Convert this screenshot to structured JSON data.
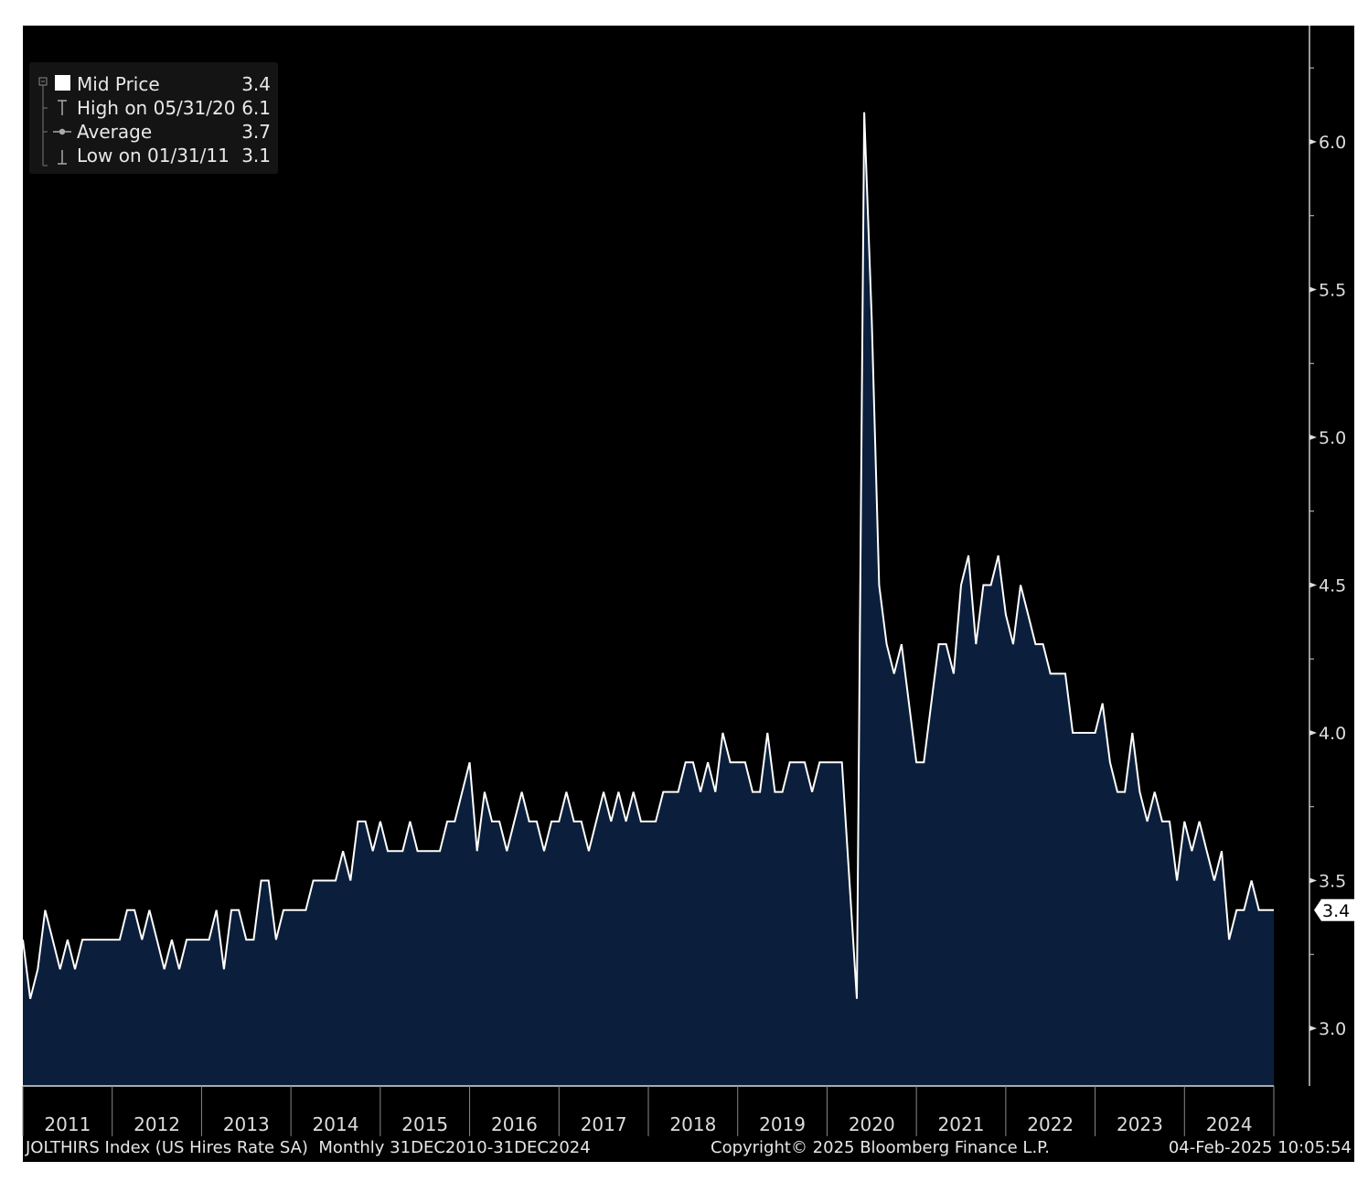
{
  "chart_data": {
    "type": "area",
    "title": "",
    "xlabel": "",
    "ylabel": "",
    "frequency": "Monthly",
    "x_start": "2010-12",
    "x_end": "2024-12",
    "ylim": [
      2.8,
      6.4
    ],
    "y_ticks": [
      "3.0",
      "3.5",
      "4.0",
      "4.5",
      "5.0",
      "5.5",
      "6.0"
    ],
    "x_tick_labels": [
      "2011",
      "2012",
      "2013",
      "2014",
      "2015",
      "2016",
      "2017",
      "2018",
      "2019",
      "2020",
      "2021",
      "2022",
      "2023",
      "2024"
    ],
    "y_axis_side": "right",
    "grid": false,
    "last_value_label": "3.4",
    "colors": {
      "background": "#000000",
      "fill": "#0b1f3c",
      "line": "#ffffff"
    },
    "series": [
      {
        "name": "Mid Price",
        "values": [
          3.3,
          3.1,
          3.2,
          3.4,
          3.3,
          3.2,
          3.3,
          3.2,
          3.3,
          3.3,
          3.3,
          3.3,
          3.3,
          3.3,
          3.4,
          3.4,
          3.3,
          3.4,
          3.3,
          3.2,
          3.3,
          3.2,
          3.3,
          3.3,
          3.3,
          3.3,
          3.4,
          3.2,
          3.4,
          3.4,
          3.3,
          3.3,
          3.5,
          3.5,
          3.3,
          3.4,
          3.4,
          3.4,
          3.4,
          3.5,
          3.5,
          3.5,
          3.5,
          3.6,
          3.5,
          3.7,
          3.7,
          3.6,
          3.7,
          3.6,
          3.6,
          3.6,
          3.7,
          3.6,
          3.6,
          3.6,
          3.6,
          3.7,
          3.7,
          3.8,
          3.9,
          3.6,
          3.8,
          3.7,
          3.7,
          3.6,
          3.7,
          3.8,
          3.7,
          3.7,
          3.6,
          3.7,
          3.7,
          3.8,
          3.7,
          3.7,
          3.6,
          3.7,
          3.8,
          3.7,
          3.8,
          3.7,
          3.8,
          3.7,
          3.7,
          3.7,
          3.8,
          3.8,
          3.8,
          3.9,
          3.9,
          3.8,
          3.9,
          3.8,
          4.0,
          3.9,
          3.9,
          3.9,
          3.8,
          3.8,
          4.0,
          3.8,
          3.8,
          3.9,
          3.9,
          3.9,
          3.8,
          3.9,
          3.9,
          3.9,
          3.9,
          3.5,
          3.1,
          6.1,
          5.4,
          4.5,
          4.3,
          4.2,
          4.3,
          4.1,
          3.9,
          3.9,
          4.1,
          4.3,
          4.3,
          4.2,
          4.5,
          4.6,
          4.3,
          4.5,
          4.5,
          4.6,
          4.4,
          4.3,
          4.5,
          4.4,
          4.3,
          4.3,
          4.2,
          4.2,
          4.2,
          4.0,
          4.0,
          4.0,
          4.0,
          4.1,
          3.9,
          3.8,
          3.8,
          4.0,
          3.8,
          3.7,
          3.8,
          3.7,
          3.7,
          3.5,
          3.7,
          3.6,
          3.7,
          3.6,
          3.5,
          3.6,
          3.3,
          3.4,
          3.4,
          3.5,
          3.4,
          3.4,
          3.4
        ]
      }
    ]
  },
  "legend": {
    "items": [
      {
        "label": "Mid Price",
        "value": "3.4",
        "icon": "white-square"
      },
      {
        "label": "High on 05/31/20",
        "value": "6.1",
        "icon": "high-marker"
      },
      {
        "label": "Average",
        "value": "3.7",
        "icon": "average-marker"
      },
      {
        "label": "Low on 01/31/11",
        "value": "3.1",
        "icon": "low-marker"
      }
    ]
  },
  "footer": {
    "ticker": "JOLTHIRS Index (US Hires Rate SA)  Monthly 31DEC2010-31DEC2024",
    "copyright": "Copyright© 2025 Bloomberg Finance L.P.",
    "timestamp": "04-Feb-2025 10:05:54"
  }
}
